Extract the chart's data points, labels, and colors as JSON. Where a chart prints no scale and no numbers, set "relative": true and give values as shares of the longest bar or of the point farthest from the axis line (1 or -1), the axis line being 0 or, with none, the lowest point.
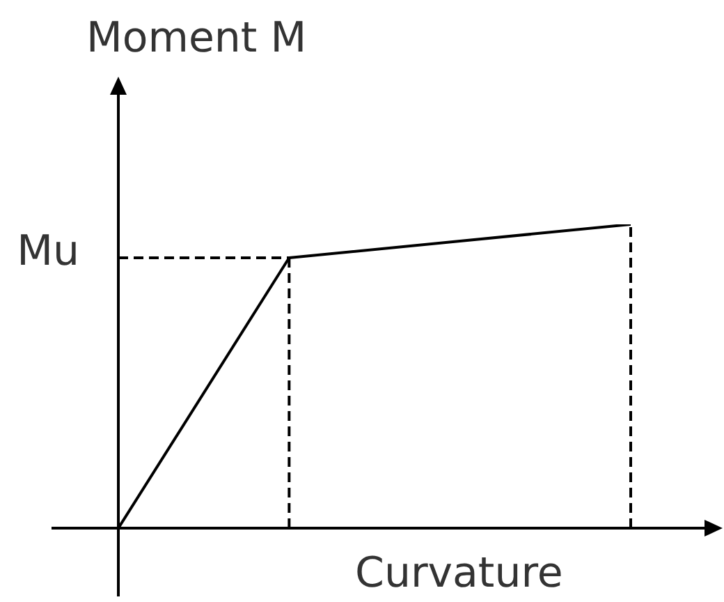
{
  "chart_data": {
    "type": "line",
    "xlabel": "Curvature",
    "ylabel": "Moment M",
    "relative": true,
    "marker": "none",
    "line_style": "solid",
    "categories": [
      null,
      null,
      null,
      null
    ],
    "series": [
      {
        "color": "#000000",
        "values": [
          0,
          0.89,
          0.945,
          1
        ]
      }
    ],
    "ref_lines": [
      {
        "axis": "y",
        "value": 0.89,
        "label": "Mu",
        "color": "#000000",
        "line_style": "dashed"
      }
    ]
  }
}
